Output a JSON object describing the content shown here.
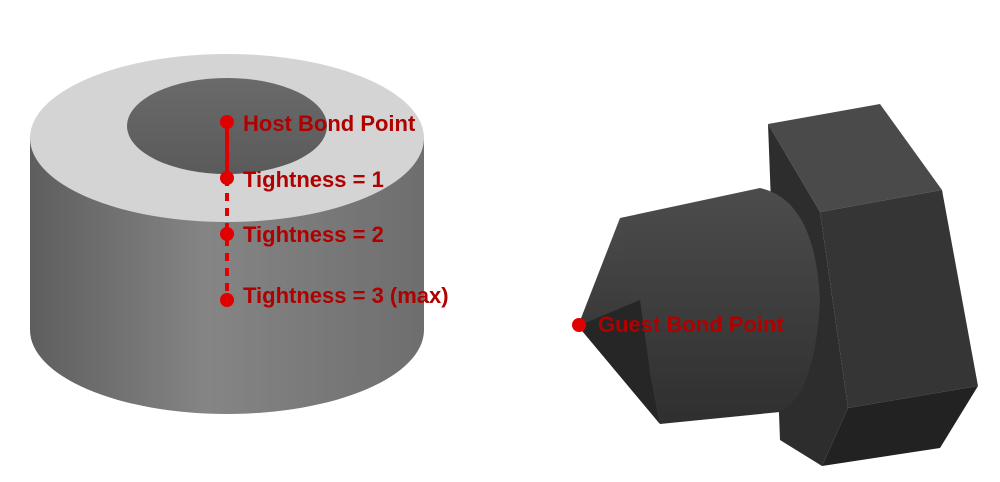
{
  "labels": {
    "host_bond_point": "Host Bond Point",
    "tightness_1": "Tightness = 1",
    "tightness_2": "Tightness = 2",
    "tightness_3": "Tightness = 3 (max)",
    "guest_bond_point": "Guest Bond Point"
  },
  "colors": {
    "annotation": "#e00000",
    "label_text": "#b00000",
    "background": "#ffffff"
  }
}
